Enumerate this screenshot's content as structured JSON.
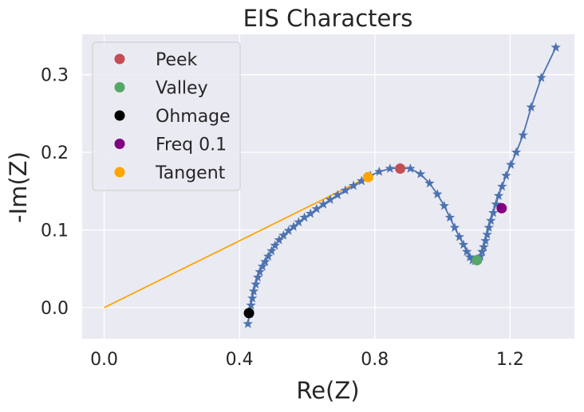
{
  "chart_data": {
    "type": "scatter",
    "title": "EIS Characters",
    "xlabel": "Re(Z)",
    "ylabel": "-Im(Z)",
    "xlim": [
      -0.065,
      1.39
    ],
    "ylim": [
      -0.04,
      0.352
    ],
    "xticks": [
      {
        "value": 0.0,
        "label": "0.0"
      },
      {
        "value": 0.4,
        "label": "0.4"
      },
      {
        "value": 0.8,
        "label": "0.8"
      },
      {
        "value": 1.2,
        "label": "1.2"
      }
    ],
    "yticks": [
      {
        "value": 0.0,
        "label": "0.0"
      },
      {
        "value": 0.1,
        "label": "0.1"
      },
      {
        "value": 0.2,
        "label": "0.2"
      },
      {
        "value": 0.3,
        "label": "0.3"
      }
    ],
    "grid": true,
    "legend_position": "top-left",
    "impedance": {
      "color": "#4c72b0",
      "x": [
        0.425,
        0.43,
        0.434,
        0.438,
        0.442,
        0.448,
        0.454,
        0.46,
        0.468,
        0.476,
        0.485,
        0.495,
        0.505,
        0.517,
        0.53,
        0.545,
        0.56,
        0.575,
        0.592,
        0.61,
        0.628,
        0.648,
        0.668,
        0.69,
        0.713,
        0.737,
        0.761,
        0.787,
        0.813,
        0.845,
        0.875,
        0.905,
        0.935,
        0.962,
        0.985,
        1.005,
        1.022,
        1.036,
        1.05,
        1.062,
        1.072,
        1.081,
        1.089,
        1.096,
        1.102,
        1.107,
        1.112,
        1.117,
        1.122,
        1.127,
        1.132,
        1.137,
        1.143,
        1.15,
        1.158,
        1.166,
        1.176,
        1.188,
        1.202,
        1.218,
        1.238,
        1.262,
        1.292,
        1.335
      ],
      "y": [
        -0.021,
        -0.008,
        0.003,
        0.012,
        0.021,
        0.03,
        0.039,
        0.046,
        0.053,
        0.059,
        0.066,
        0.073,
        0.08,
        0.087,
        0.093,
        0.099,
        0.104,
        0.11,
        0.116,
        0.121,
        0.127,
        0.133,
        0.139,
        0.145,
        0.151,
        0.157,
        0.163,
        0.17,
        0.175,
        0.179,
        0.18,
        0.179,
        0.172,
        0.16,
        0.146,
        0.131,
        0.116,
        0.103,
        0.091,
        0.081,
        0.072,
        0.065,
        0.061,
        0.06,
        0.061,
        0.063,
        0.066,
        0.072,
        0.078,
        0.086,
        0.094,
        0.103,
        0.112,
        0.122,
        0.133,
        0.144,
        0.156,
        0.17,
        0.184,
        0.2,
        0.222,
        0.258,
        0.296,
        0.335
      ]
    },
    "tangent_line": {
      "color": "#ffa500",
      "x": [
        0.0,
        0.785
      ],
      "y": [
        0.0,
        0.169
      ]
    },
    "markers": [
      {
        "name": "Peek",
        "color": "#c44e52",
        "x": 0.875,
        "y": 0.179
      },
      {
        "name": "Valley",
        "color": "#55a868",
        "x": 1.102,
        "y": 0.061
      },
      {
        "name": "Ohmage",
        "color": "#000000",
        "x": 0.428,
        "y": -0.007
      },
      {
        "name": "Freq 0.1",
        "color": "#800080",
        "x": 1.175,
        "y": 0.128
      },
      {
        "name": "Tangent",
        "color": "#ffa500",
        "x": 0.78,
        "y": 0.168
      }
    ]
  }
}
